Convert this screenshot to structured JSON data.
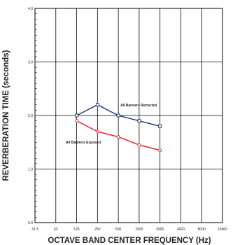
{
  "chart_data": {
    "type": "line",
    "title": "",
    "xlabel": "OCTAVE BAND CENTER FREQUENCY (Hz)",
    "ylabel": "REVERBERATION TIME (seconds)",
    "x_scale": "log",
    "categories": [
      "31.5",
      "63",
      "125",
      "250",
      "500",
      "1000",
      "2000",
      "4000",
      "8000",
      "16000"
    ],
    "ylim": [
      0,
      4
    ],
    "yticks": [
      "0.0",
      "1.0",
      "2.0",
      "3.0",
      "4.0"
    ],
    "grid": true,
    "legend": "none",
    "series": [
      {
        "name": "All Banners Retracted",
        "color": "#1f2d7a",
        "marker": "square",
        "x": [
          "125",
          "250",
          "500",
          "1000",
          "2000"
        ],
        "values": [
          2.0,
          2.2,
          2.0,
          1.9,
          1.8
        ]
      },
      {
        "name": "All Banners Exposed",
        "color": "#e31e24",
        "marker": "circle",
        "x": [
          "125",
          "250",
          "500",
          "1000",
          "2000"
        ],
        "values": [
          1.9,
          1.7,
          1.6,
          1.45,
          1.35
        ]
      }
    ]
  }
}
